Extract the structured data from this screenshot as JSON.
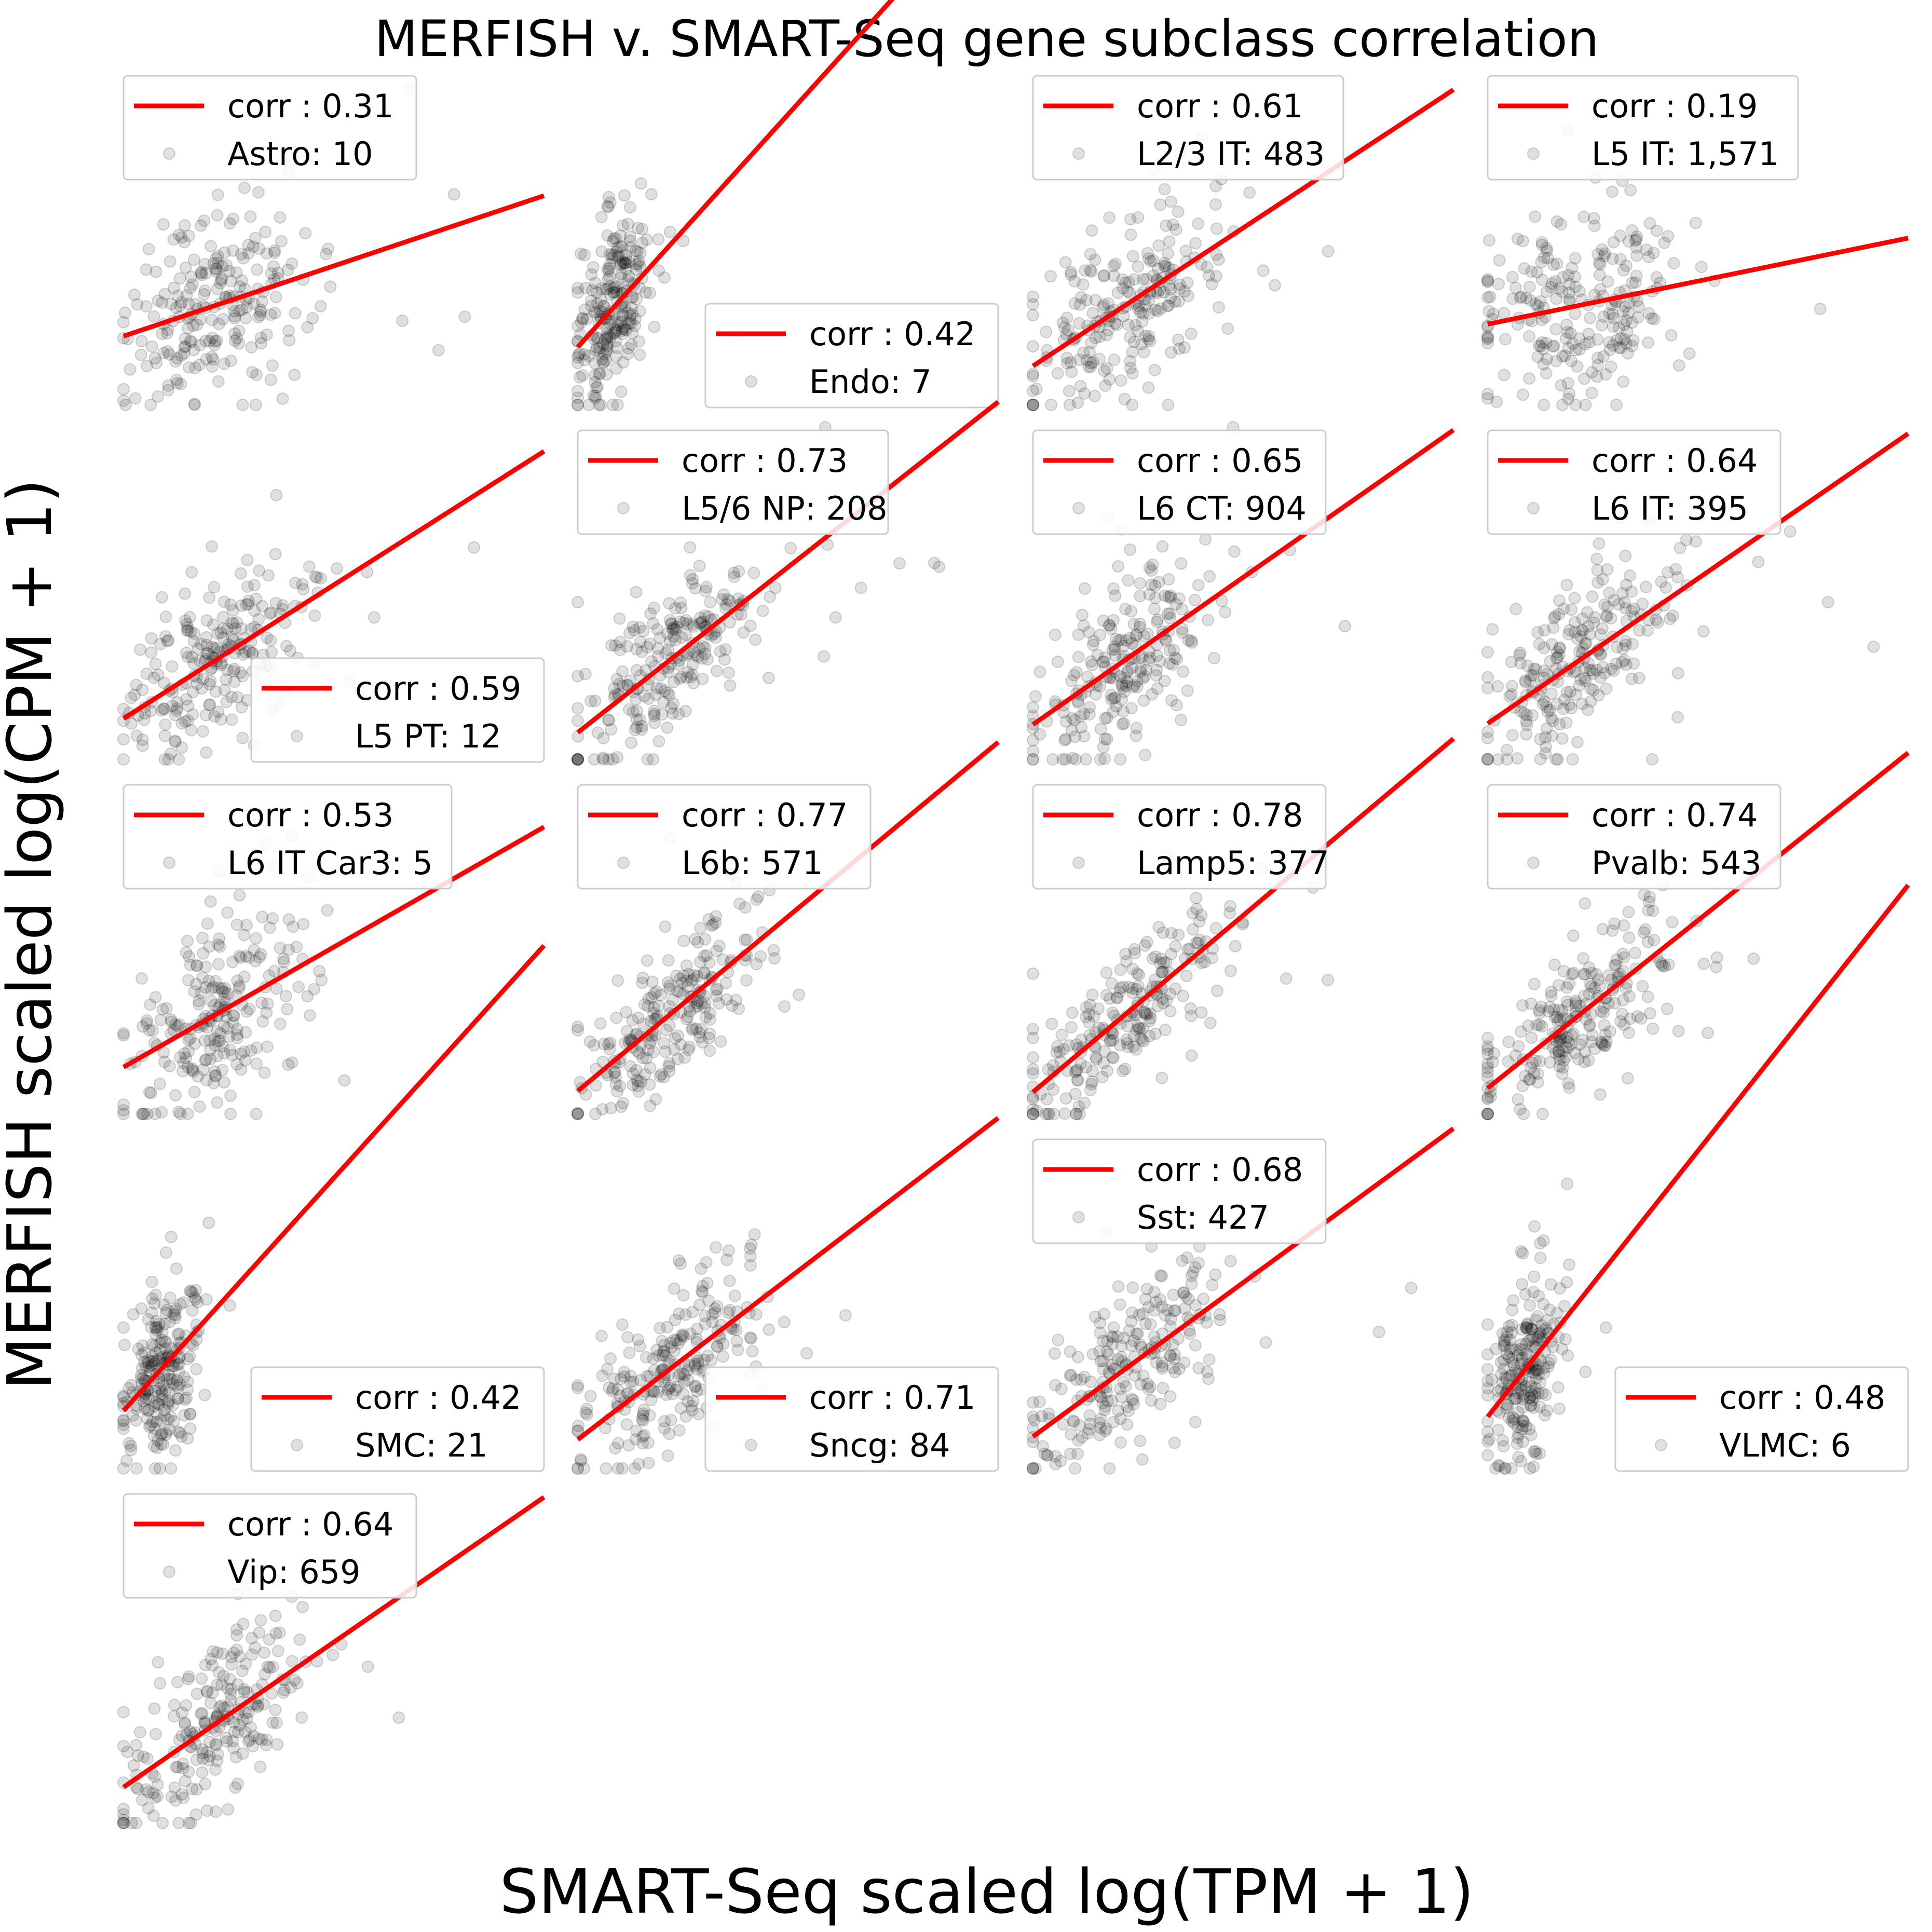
{
  "chart_data": {
    "type": "scatter",
    "title": "MERFISH v. SMART-Seq gene subclass correlation",
    "xlabel": "SMART-Seq scaled log(TPM + 1)",
    "ylabel": "MERFISH scaled log(CPM + 1)",
    "grid": false,
    "layout": "5x4 grid of panels, 17 panels",
    "point_color": "#000000",
    "point_alpha": 0.12,
    "fit_line_color": "#ff0000",
    "panels": [
      {
        "name": "Astro",
        "label": "Astro: 10",
        "corr": 0.31,
        "corr_label": "corr : 0.31",
        "legend_loc": "upper left"
      },
      {
        "name": "Endo",
        "label": "Endo: 7",
        "corr": 0.42,
        "corr_label": "corr : 0.42",
        "legend_loc": "lower right"
      },
      {
        "name": "L2/3 IT",
        "label": "L2/3 IT: 483",
        "corr": 0.61,
        "corr_label": "corr : 0.61",
        "legend_loc": "upper left"
      },
      {
        "name": "L5 IT",
        "label": "L5 IT: 1,571",
        "corr": 0.19,
        "corr_label": "corr : 0.19",
        "legend_loc": "upper left"
      },
      {
        "name": "L5 PT",
        "label": "L5 PT: 12",
        "corr": 0.59,
        "corr_label": "corr : 0.59",
        "legend_loc": "lower right"
      },
      {
        "name": "L5/6 NP",
        "label": "L5/6 NP: 208",
        "corr": 0.73,
        "corr_label": "corr : 0.73",
        "legend_loc": "upper left"
      },
      {
        "name": "L6 CT",
        "label": "L6 CT: 904",
        "corr": 0.65,
        "corr_label": "corr : 0.65",
        "legend_loc": "upper left"
      },
      {
        "name": "L6 IT",
        "label": "L6 IT: 395",
        "corr": 0.64,
        "corr_label": "corr : 0.64",
        "legend_loc": "upper left"
      },
      {
        "name": "L6 IT Car3",
        "label": "L6 IT Car3: 5",
        "corr": 0.53,
        "corr_label": "corr : 0.53",
        "legend_loc": "upper left"
      },
      {
        "name": "L6b",
        "label": "L6b: 571",
        "corr": 0.77,
        "corr_label": "corr : 0.77",
        "legend_loc": "upper left"
      },
      {
        "name": "Lamp5",
        "label": "Lamp5: 377",
        "corr": 0.78,
        "corr_label": "corr : 0.78",
        "legend_loc": "upper left"
      },
      {
        "name": "Pvalb",
        "label": "Pvalb: 543",
        "corr": 0.74,
        "corr_label": "corr : 0.74",
        "legend_loc": "upper left"
      },
      {
        "name": "SMC",
        "label": "SMC: 21",
        "corr": 0.42,
        "corr_label": "corr : 0.42",
        "legend_loc": "lower right"
      },
      {
        "name": "Sncg",
        "label": "Sncg: 84",
        "corr": 0.71,
        "corr_label": "corr : 0.71",
        "legend_loc": "lower right"
      },
      {
        "name": "Sst",
        "label": "Sst: 427",
        "corr": 0.68,
        "corr_label": "corr : 0.68",
        "legend_loc": "upper left"
      },
      {
        "name": "VLMC",
        "label": "VLMC: 6",
        "corr": 0.48,
        "corr_label": "corr : 0.48",
        "legend_loc": "lower right"
      },
      {
        "name": "Vip",
        "label": "Vip: 659",
        "corr": 0.64,
        "corr_label": "corr : 0.64",
        "legend_loc": "upper left"
      }
    ]
  }
}
